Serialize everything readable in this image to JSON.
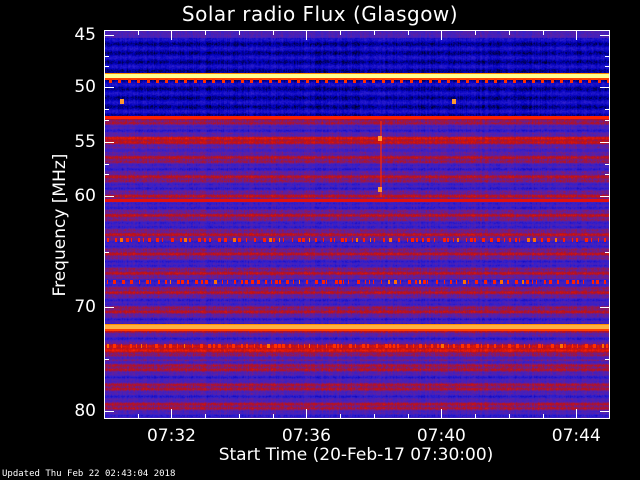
{
  "chart_data": {
    "type": "heatmap",
    "title": "Solar radio Flux (Glasgow)",
    "xlabel": "Start Time (20-Feb-17 07:30:00)",
    "ylabel": "Frequency [MHz]",
    "xlim": [
      "07:30",
      "07:45"
    ],
    "ylim": [
      80,
      45
    ],
    "x_ticks": [
      "07:32",
      "07:36",
      "07:40",
      "07:44"
    ],
    "y_ticks": [
      "45",
      "50",
      "55",
      "60",
      "70",
      "80"
    ],
    "y_tick_values": [
      45,
      50,
      55,
      60,
      70,
      80
    ],
    "x_tick_minutes": [
      2,
      6,
      10,
      14
    ],
    "colormap": [
      "#000000",
      "#0000c0",
      "#3020d0",
      "#6020a0",
      "#c01010",
      "#ff2000",
      "#ff8000",
      "#ffff80",
      "#ffffff"
    ],
    "features": [
      {
        "name": "continuous-band",
        "freq_mhz": 48.8,
        "level": "very high",
        "color": "#ffff90"
      },
      {
        "name": "periodic-pulses",
        "freq_mhz": 49.3,
        "level": "high",
        "color": "#ff3000"
      },
      {
        "name": "continuous-band",
        "freq_mhz": 52.7,
        "level": "high",
        "color": "#ff2000"
      },
      {
        "name": "continuous-band",
        "freq_mhz": 60.3,
        "level": "high",
        "color": "#e01010"
      },
      {
        "name": "dotted-band",
        "freq_mhz": 63.9,
        "level": "high",
        "color": "#ff2000"
      },
      {
        "name": "dotted-band",
        "freq_mhz": 67.7,
        "level": "high",
        "color": "#ff2000"
      },
      {
        "name": "continuous-band",
        "freq_mhz": 71.8,
        "level": "very high",
        "color": "#ffb040"
      },
      {
        "name": "dotted-band",
        "freq_mhz": 73.7,
        "level": "high",
        "color": "#ff3000"
      }
    ],
    "spots": [
      {
        "time": "07:30:30",
        "freq_mhz": 51.2
      },
      {
        "time": "07:40:20",
        "freq_mhz": 51.2
      },
      {
        "time": "07:38:10",
        "freq_mhz": 54.5
      },
      {
        "time": "07:38:10",
        "freq_mhz": 59.3
      }
    ]
  },
  "footer": {
    "updated": "Updated Thu Feb 22 02:43:04 2018"
  }
}
